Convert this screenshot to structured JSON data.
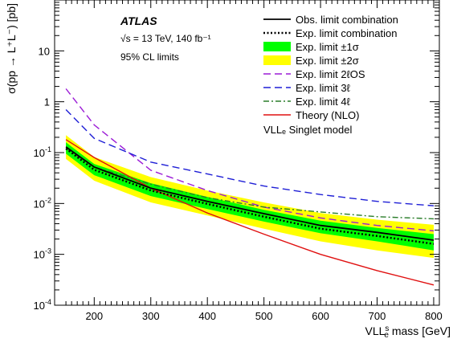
{
  "chart_data": {
    "type": "line",
    "xlabel": "VLLₛg mass [GeV]",
    "xlabel_main": "VLL",
    "xlabel_sup": "s",
    "xlabel_sub": "e",
    "xlabel_rest": " mass [GeV]",
    "ylabel": "σ(pp → L⁺L⁻)  [pb]",
    "xlim": [
      130,
      810
    ],
    "ylim": [
      0.0001,
      100
    ],
    "yscale": "log",
    "x_ticks": [
      "200",
      "300",
      "400",
      "500",
      "600",
      "700",
      "800"
    ],
    "y_ticks": [
      {
        "base": "10",
        "exp": "-4"
      },
      {
        "base": "10",
        "exp": "-3"
      },
      {
        "base": "10",
        "exp": "-2"
      },
      {
        "base": "10",
        "exp": "-1"
      },
      {
        "base": "1",
        "exp": ""
      },
      {
        "base": "10",
        "exp": ""
      }
    ],
    "annotations": {
      "experiment": "ATLAS",
      "energy_line": "√s = 13 TeV, 140 fb⁻¹",
      "cl_line": "95% CL limits",
      "model_line": "VLLₑ Singlet model"
    },
    "x": [
      150,
      200,
      300,
      400,
      500,
      600,
      700,
      800
    ],
    "band_2sigma": {
      "name": "Exp. limit ±2σ",
      "color": "#ffff00",
      "low": [
        0.075,
        0.028,
        0.0105,
        0.0058,
        0.0032,
        0.0018,
        0.0012,
        0.00085
      ],
      "high": [
        0.22,
        0.082,
        0.033,
        0.018,
        0.0105,
        0.0065,
        0.0048,
        0.0038
      ]
    },
    "band_1sigma": {
      "name": "Exp. limit ±1σ",
      "color": "#00ff00",
      "low": [
        0.095,
        0.036,
        0.014,
        0.0078,
        0.0044,
        0.0026,
        0.0018,
        0.0012
      ],
      "high": [
        0.16,
        0.06,
        0.025,
        0.0135,
        0.0075,
        0.0046,
        0.0033,
        0.0025
      ]
    },
    "series": [
      {
        "name": "Obs. limit combination",
        "color": "#000000",
        "style": "solid",
        "width": 1.8,
        "values": [
          0.13,
          0.052,
          0.02,
          0.011,
          0.0063,
          0.0037,
          0.0027,
          0.0019
        ]
      },
      {
        "name": "Exp. limit combination",
        "color": "#000000",
        "style": "dotted",
        "width": 2.4,
        "values": [
          0.12,
          0.046,
          0.018,
          0.0098,
          0.0055,
          0.0032,
          0.0023,
          0.0016
        ]
      },
      {
        "name": "Exp. limit 2ℓOS",
        "color": "#9b1bd6",
        "style": "dashed",
        "width": 1.4,
        "values": [
          1.8,
          0.35,
          0.045,
          0.018,
          0.0085,
          0.0052,
          0.0037,
          0.0029
        ]
      },
      {
        "name": "Exp. limit 3ℓ",
        "color": "#1f1fd6",
        "style": "dashed",
        "width": 1.4,
        "values": [
          0.7,
          0.19,
          0.065,
          0.038,
          0.022,
          0.015,
          0.011,
          0.009
        ]
      },
      {
        "name": "Exp. limit 4ℓ",
        "color": "#2a7d2a",
        "style": "dashdot",
        "width": 1.4,
        "values": [
          0.12,
          0.052,
          0.024,
          0.013,
          0.0085,
          0.0068,
          0.0055,
          0.005
        ]
      },
      {
        "name": "Theory (NLO)",
        "color": "#e01010",
        "style": "solid",
        "width": 1.4,
        "values": [
          0.18,
          0.08,
          0.02,
          0.0065,
          0.0025,
          0.001,
          0.00048,
          0.00025
        ]
      }
    ],
    "legend_order": [
      {
        "name": "Obs. limit combination",
        "kind": "line",
        "ref": 0
      },
      {
        "name": "Exp. limit combination",
        "kind": "line",
        "ref": 1
      },
      {
        "name": "Exp. limit ±1σ",
        "kind": "box",
        "color": "#00ff00"
      },
      {
        "name": "Exp. limit ±2σ",
        "kind": "box",
        "color": "#ffff00"
      },
      {
        "name": "Exp. limit 2ℓOS",
        "kind": "line",
        "ref": 2
      },
      {
        "name": "Exp. limit 3ℓ",
        "kind": "line",
        "ref": 3
      },
      {
        "name": "Exp. limit 4ℓ",
        "kind": "line",
        "ref": 4
      },
      {
        "name": "Theory (NLO)",
        "kind": "line",
        "ref": 5
      }
    ],
    "legend_placement": "top-right",
    "grid": false
  }
}
